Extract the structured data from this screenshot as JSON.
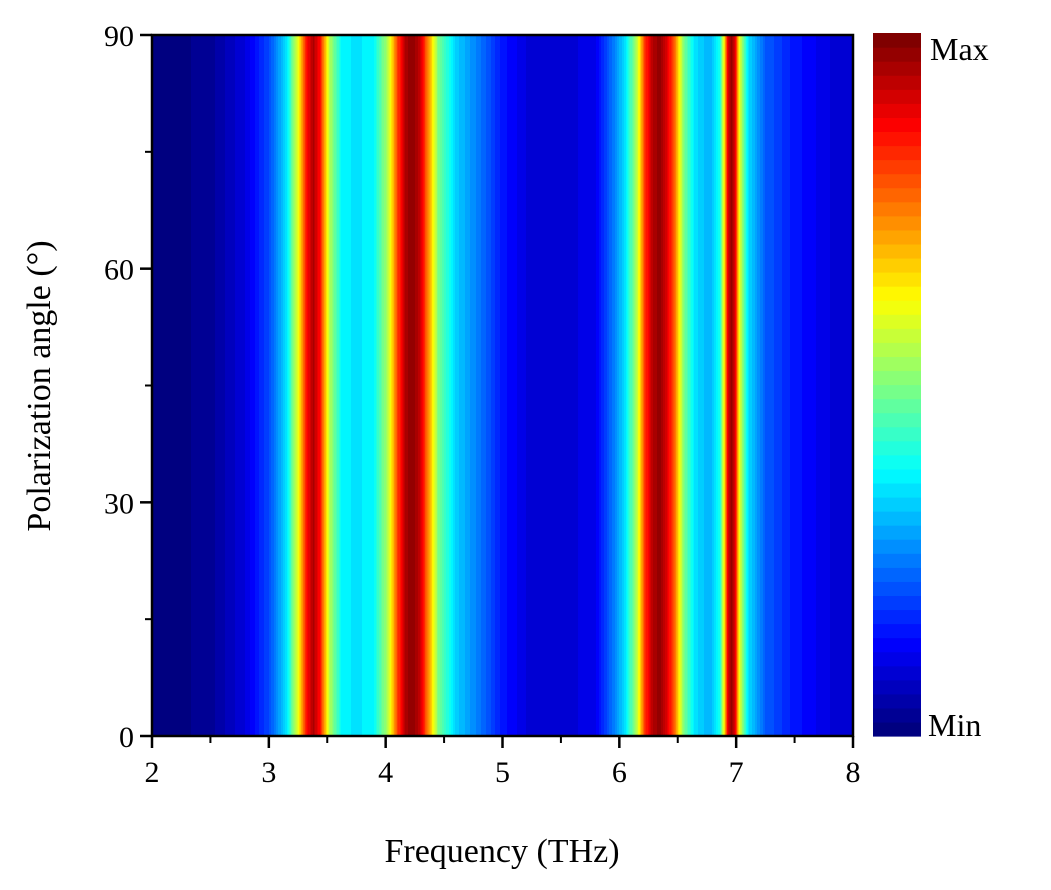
{
  "chart_data": {
    "type": "heatmap",
    "title": "",
    "xlabel": "Frequency (THz)",
    "ylabel": "Polarization angle (°)",
    "xlim": [
      2,
      8
    ],
    "ylim": [
      0,
      90
    ],
    "x_ticks": [
      2,
      3,
      4,
      5,
      6,
      7,
      8
    ],
    "y_ticks": [
      0,
      30,
      60,
      90
    ],
    "colorbar": {
      "max_label": "Max",
      "min_label": "Min",
      "colormap": "jet",
      "levels": 50
    },
    "profile": {
      "frequency": [
        2.0,
        2.5,
        2.8,
        3.0,
        3.15,
        3.25,
        3.32,
        3.38,
        3.44,
        3.52,
        3.62,
        3.75,
        3.9,
        4.02,
        4.1,
        4.17,
        4.23,
        4.29,
        4.36,
        4.45,
        4.6,
        4.8,
        5.0,
        5.2,
        5.5,
        5.8,
        5.95,
        6.05,
        6.15,
        6.22,
        6.29,
        6.35,
        6.41,
        6.48,
        6.55,
        6.65,
        6.78,
        6.86,
        6.9,
        6.93,
        6.96,
        6.99,
        7.03,
        7.1,
        7.25,
        7.5,
        7.8,
        8.0
      ],
      "intensity": [
        0.0,
        0.03,
        0.1,
        0.2,
        0.35,
        0.6,
        0.85,
        0.95,
        0.85,
        0.55,
        0.38,
        0.35,
        0.38,
        0.55,
        0.8,
        0.95,
        0.98,
        0.93,
        0.75,
        0.5,
        0.33,
        0.25,
        0.15,
        0.1,
        0.08,
        0.12,
        0.25,
        0.35,
        0.55,
        0.82,
        0.95,
        0.97,
        0.9,
        0.75,
        0.5,
        0.35,
        0.3,
        0.4,
        0.65,
        0.9,
        0.97,
        0.9,
        0.6,
        0.35,
        0.22,
        0.15,
        0.1,
        0.08
      ]
    },
    "angle_dependence": "nearly constant across all polarization angles (0–90°); bands are vertical"
  }
}
